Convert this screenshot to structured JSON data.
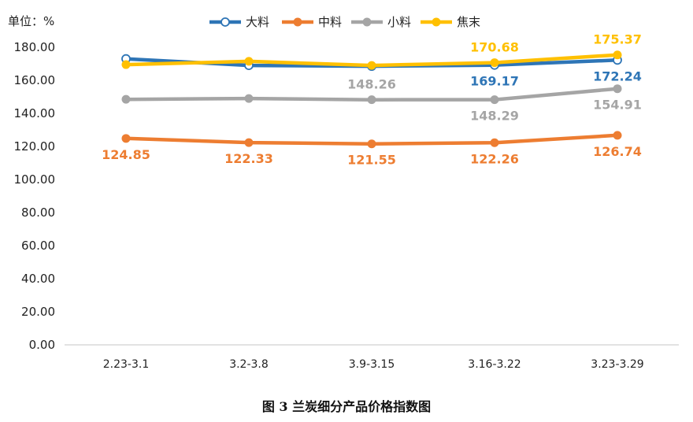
{
  "chart_data": {
    "type": "line",
    "unit_label": "单位：%",
    "caption": "图 3  兰炭细分产品价格指数图",
    "categories": [
      "2.23-3.1",
      "3.2-3.8",
      "3.9-3.15",
      "3.16-3.22",
      "3.23-3.29"
    ],
    "ylim": [
      0,
      180
    ],
    "yticks": [
      "0.00",
      "20.00",
      "40.00",
      "60.00",
      "80.00",
      "100.00",
      "120.00",
      "140.00",
      "160.00",
      "180.00"
    ],
    "legend_position": "top",
    "series": [
      {
        "name": "大料",
        "color": "#2E75B6",
        "marker": "hollow-circle",
        "values": [
          173.0,
          169.0,
          168.5,
          169.17,
          172.24
        ],
        "labels": [
          null,
          null,
          null,
          "169.17",
          "172.24"
        ],
        "label_placement": [
          null,
          null,
          null,
          "below",
          "below"
        ]
      },
      {
        "name": "中料",
        "color": "#ED7D31",
        "marker": "filled-circle",
        "values": [
          124.85,
          122.33,
          121.55,
          122.26,
          126.74
        ],
        "labels": [
          "124.85",
          "122.33",
          "121.55",
          "122.26",
          "126.74"
        ],
        "label_placement": [
          "below",
          "below",
          "below",
          "below",
          "below"
        ]
      },
      {
        "name": "小料",
        "color": "#A5A5A5",
        "marker": "filled-circle",
        "values": [
          148.5,
          149.0,
          148.26,
          148.29,
          154.91
        ],
        "labels": [
          null,
          null,
          "148.26",
          "148.29",
          "154.91"
        ],
        "label_placement": [
          null,
          null,
          "above",
          "below",
          "below"
        ]
      },
      {
        "name": "焦末",
        "color": "#FFC000",
        "marker": "filled-circle",
        "values": [
          169.5,
          171.5,
          169.0,
          170.68,
          175.37
        ],
        "labels": [
          null,
          null,
          null,
          "170.68",
          "175.37"
        ],
        "label_placement": [
          null,
          null,
          null,
          "above",
          "above"
        ]
      }
    ]
  }
}
